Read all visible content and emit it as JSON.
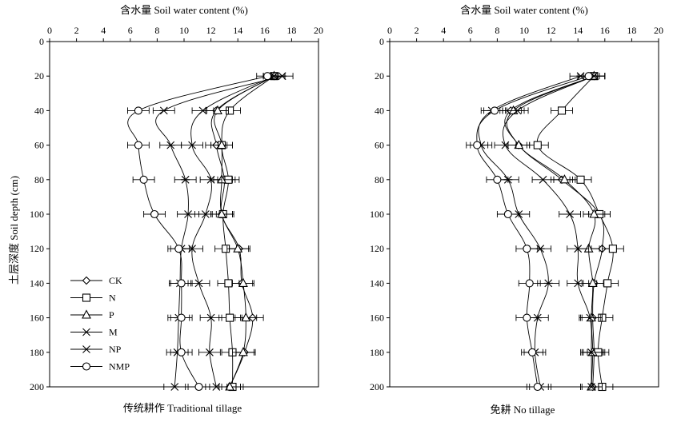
{
  "chart_data": [
    {
      "type": "line",
      "title": "传统耕作 Traditional tillage",
      "xlabel": "含水量 Soil water content (%)",
      "ylabel": "土层深度 Soil depth (cm)",
      "x_axis_position": "top",
      "xlim": [
        0,
        20
      ],
      "ylim": [
        0,
        200
      ],
      "y_inverted": true,
      "x_ticks": [
        0,
        2,
        4,
        6,
        8,
        10,
        12,
        14,
        16,
        18,
        20
      ],
      "y_ticks": [
        0,
        20,
        40,
        60,
        80,
        100,
        120,
        140,
        160,
        180,
        200
      ],
      "legend_position": "bottom-left",
      "depths": [
        20,
        40,
        60,
        80,
        100,
        120,
        140,
        160,
        180,
        200
      ],
      "series": [
        {
          "name": "CK",
          "marker": "diamond",
          "values": [
            16.7,
            12.4,
            12.4,
            13.0,
            12.8,
            14.1,
            14.3,
            15.1,
            14.5,
            13.4
          ]
        },
        {
          "name": "N",
          "marker": "square",
          "values": [
            16.7,
            13.4,
            12.8,
            13.3,
            12.9,
            13.1,
            13.3,
            13.4,
            13.6,
            13.6
          ]
        },
        {
          "name": "P",
          "marker": "triangle",
          "values": [
            16.7,
            12.5,
            12.8,
            12.8,
            12.8,
            14.0,
            14.4,
            14.6,
            14.4,
            13.4
          ]
        },
        {
          "name": "M",
          "marker": "x",
          "values": [
            16.7,
            11.4,
            10.6,
            12.0,
            11.6,
            10.6,
            11.1,
            12.0,
            11.9,
            12.4
          ]
        },
        {
          "name": "NP",
          "marker": "asterisk",
          "values": [
            17.3,
            8.5,
            9.0,
            10.1,
            10.3,
            9.8,
            9.7,
            9.6,
            9.5,
            9.3
          ]
        },
        {
          "name": "NMP",
          "marker": "circle",
          "values": [
            16.2,
            6.6,
            6.6,
            7.0,
            7.8,
            9.6,
            9.8,
            9.8,
            9.8,
            11.1
          ]
        }
      ]
    },
    {
      "type": "line",
      "title": "免耕 No tillage",
      "xlabel": "含水量 Soil water content (%)",
      "ylabel": "",
      "x_axis_position": "top",
      "xlim": [
        0,
        20
      ],
      "ylim": [
        0,
        200
      ],
      "y_inverted": true,
      "x_ticks": [
        0,
        2,
        4,
        6,
        8,
        10,
        12,
        14,
        16,
        18,
        20
      ],
      "y_ticks": [
        0,
        20,
        40,
        60,
        80,
        100,
        120,
        140,
        160,
        180,
        200
      ],
      "depths": [
        20,
        40,
        60,
        80,
        100,
        120,
        140,
        160,
        180,
        200
      ],
      "series": [
        {
          "name": "CK",
          "marker": "diamond",
          "values": [
            15.2,
            9.0,
            9.6,
            12.8,
            15.6,
            15.8,
            15.2,
            15.1,
            15.2,
            15.1
          ]
        },
        {
          "name": "N",
          "marker": "square",
          "values": [
            15.2,
            12.8,
            11.0,
            14.2,
            15.6,
            16.6,
            16.2,
            15.8,
            15.5,
            15.8
          ]
        },
        {
          "name": "P",
          "marker": "triangle",
          "values": [
            15.2,
            9.2,
            9.6,
            13.0,
            15.2,
            14.8,
            15.1,
            15.0,
            15.1,
            15.0
          ]
        },
        {
          "name": "M",
          "marker": "x",
          "values": [
            15.2,
            9.5,
            8.6,
            11.4,
            13.4,
            14.0,
            14.0,
            14.9,
            15.0,
            15.0
          ]
        },
        {
          "name": "NP",
          "marker": "asterisk",
          "values": [
            14.2,
            7.6,
            6.8,
            8.8,
            9.6,
            11.2,
            11.8,
            11.0,
            10.8,
            11.2
          ]
        },
        {
          "name": "NMP",
          "marker": "circle",
          "values": [
            14.8,
            7.8,
            6.5,
            8.0,
            8.8,
            10.2,
            10.4,
            10.2,
            10.6,
            11.0
          ]
        }
      ]
    }
  ]
}
